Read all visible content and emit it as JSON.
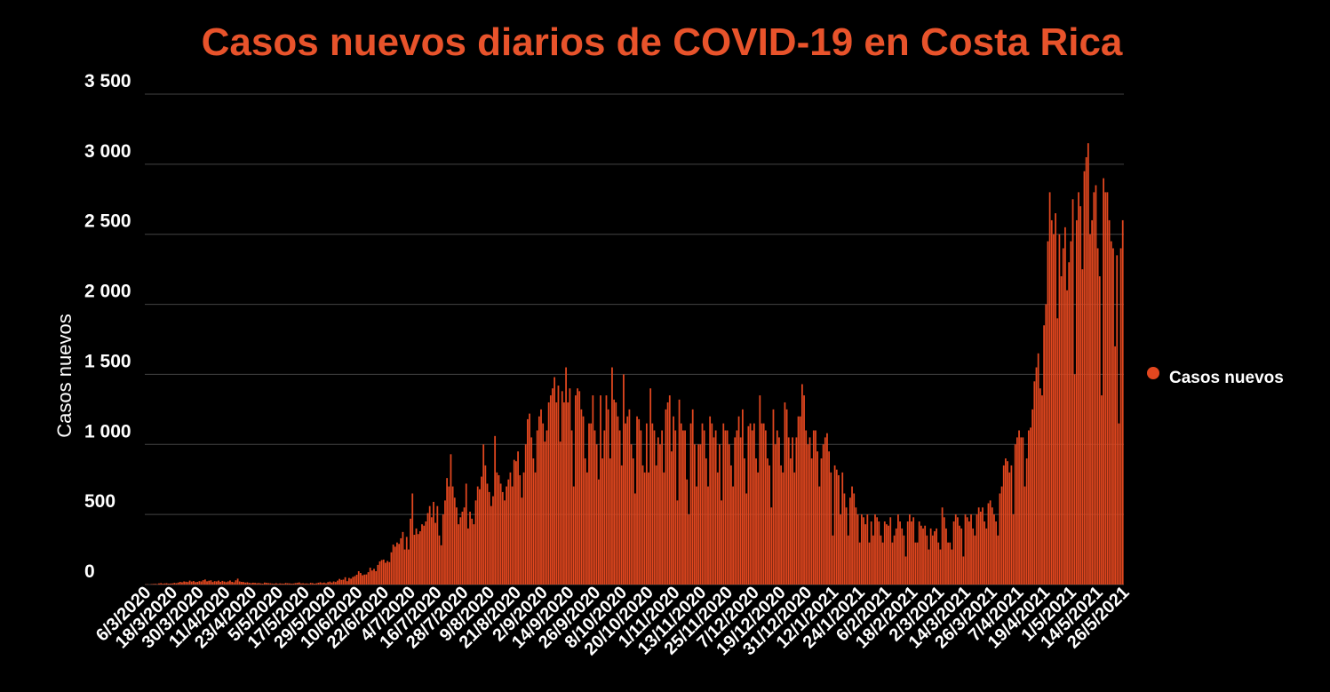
{
  "colors": {
    "background": "#000000",
    "bar": "#e2471f",
    "title": "#e8532b",
    "grid": "#444444",
    "text": "#ffffff"
  },
  "chart_data": {
    "type": "bar",
    "title": "Casos nuevos diarios de COVID-19 en Costa Rica",
    "ylabel": "Casos nuevos",
    "xlabel": "",
    "ylim": [
      0,
      3500
    ],
    "grid": true,
    "legend_position": "right",
    "y_ticks": [
      0,
      500,
      1000,
      1500,
      2000,
      2500,
      3000,
      3500
    ],
    "y_tick_labels": [
      "0",
      "500",
      "1 000",
      "1 500",
      "2 000",
      "2 500",
      "3 000",
      "3 500"
    ],
    "x_start": "6/3/2020",
    "x_tick_labels": [
      "6/3/2020",
      "18/3/2020",
      "30/3/2020",
      "11/4/2020",
      "23/4/2020",
      "5/5/2020",
      "17/5/2020",
      "29/5/2020",
      "10/6/2020",
      "22/6/2020",
      "4/7/2020",
      "16/7/2020",
      "28/7/2020",
      "9/8/2020",
      "21/8/2020",
      "2/9/2020",
      "14/9/2020",
      "26/9/2020",
      "8/10/2020",
      "20/10/2020",
      "1/11/2020",
      "13/11/2020",
      "25/11/2020",
      "7/12/2020",
      "19/12/2020",
      "31/12/2020",
      "12/1/2021",
      "24/1/2021",
      "6/2/2021",
      "18/2/2021",
      "2/3/2021",
      "14/3/2021",
      "26/3/2021",
      "7/4/2021",
      "19/4/2021",
      "1/5/2021",
      "14/5/2021",
      "26/5/2021"
    ],
    "series": [
      {
        "name": "Casos nuevos",
        "values": [
          1,
          2,
          0,
          3,
          4,
          5,
          3,
          8,
          10,
          6,
          8,
          9,
          6,
          7,
          8,
          12,
          9,
          14,
          19,
          16,
          22,
          20,
          18,
          28,
          21,
          25,
          17,
          19,
          24,
          22,
          31,
          36,
          23,
          27,
          30,
          18,
          24,
          22,
          28,
          19,
          26,
          21,
          17,
          22,
          29,
          19,
          16,
          30,
          42,
          22,
          19,
          18,
          14,
          16,
          12,
          10,
          13,
          12,
          9,
          11,
          8,
          6,
          14,
          12,
          10,
          9,
          7,
          6,
          9,
          5,
          8,
          7,
          6,
          11,
          9,
          8,
          6,
          7,
          10,
          12,
          15,
          8,
          9,
          7,
          8,
          5,
          12,
          10,
          6,
          9,
          13,
          16,
          11,
          14,
          9,
          17,
          21,
          14,
          22,
          18,
          28,
          40,
          33,
          35,
          52,
          24,
          47,
          42,
          54,
          60,
          70,
          95,
          82,
          66,
          71,
          72,
          88,
          120,
          100,
          112,
          95,
          140,
          165,
          175,
          178,
          155,
          168,
          160,
          230,
          285,
          270,
          300,
          290,
          330,
          375,
          250,
          340,
          250,
          470,
          650,
          355,
          400,
          360,
          380,
          430,
          420,
          450,
          510,
          560,
          480,
          590,
          440,
          560,
          350,
          280,
          500,
          600,
          760,
          700,
          930,
          700,
          620,
          550,
          430,
          480,
          520,
          550,
          720,
          400,
          520,
          470,
          430,
          600,
          700,
          680,
          770,
          1000,
          850,
          720,
          660,
          560,
          630,
          1060,
          800,
          780,
          720,
          660,
          600,
          700,
          750,
          800,
          700,
          890,
          880,
          950,
          780,
          620,
          800,
          1000,
          1180,
          1220,
          1050,
          900,
          800,
          1100,
          1200,
          1250,
          1150,
          1020,
          1100,
          1300,
          1350,
          1400,
          1480,
          1300,
          1420,
          1020,
          1380,
          1300,
          1550,
          1300,
          1400,
          1100,
          700,
          1350,
          1400,
          1380,
          1250,
          1200,
          900,
          800,
          1150,
          1150,
          1350,
          1100,
          1000,
          750,
          1350,
          900,
          1100,
          1350,
          1250,
          900,
          1550,
          1320,
          1300,
          1200,
          1100,
          850,
          1500,
          1150,
          1200,
          1250,
          1000,
          900,
          650,
          1200,
          1180,
          1100,
          850,
          800,
          1150,
          800,
          1400,
          1150,
          1100,
          850,
          1050,
          1000,
          1100,
          800,
          1250,
          1300,
          1350,
          950,
          1200,
          1100,
          600,
          1320,
          1150,
          1100,
          1100,
          750,
          500,
          1150,
          1250,
          1000,
          700,
          1000,
          1000,
          1150,
          1100,
          900,
          700,
          1200,
          1150,
          1050,
          1100,
          800,
          1000,
          600,
          1150,
          1100,
          1100,
          1000,
          850,
          700,
          1050,
          1100,
          1200,
          1050,
          1250,
          900,
          650,
          1130,
          1150,
          1100,
          1150,
          900,
          800,
          1350,
          1150,
          1150,
          1100,
          900,
          850,
          550,
          1250,
          1000,
          1100,
          1050,
          850,
          800,
          1300,
          1250,
          1050,
          900,
          1050,
          800,
          1050,
          1200,
          1200,
          1430,
          1350,
          1100,
          1000,
          1050,
          900,
          1100,
          1100,
          950,
          700,
          900,
          1000,
          1050,
          1080,
          950,
          800,
          350,
          850,
          820,
          780,
          500,
          800,
          650,
          550,
          350,
          620,
          700,
          650,
          550,
          500,
          300,
          500,
          480,
          430,
          500,
          300,
          450,
          350,
          500,
          480,
          450,
          350,
          300,
          450,
          430,
          420,
          480,
          300,
          350,
          400,
          500,
          450,
          400,
          350,
          200,
          450,
          500,
          450,
          480,
          300,
          300,
          450,
          420,
          400,
          420,
          350,
          250,
          400,
          350,
          380,
          400,
          300,
          250,
          550,
          480,
          400,
          300,
          300,
          250,
          450,
          500,
          480,
          420,
          400,
          200,
          500,
          480,
          450,
          500,
          400,
          350,
          500,
          550,
          520,
          550,
          450,
          400,
          580,
          600,
          550,
          500,
          450,
          350,
          650,
          700,
          850,
          900,
          880,
          800,
          850,
          500,
          1000,
          1050,
          1100,
          1050,
          1050,
          700,
          900,
          1100,
          1120,
          1250,
          1450,
          1550,
          1650,
          1400,
          1350,
          1850,
          2000,
          2450,
          2800,
          2600,
          2500,
          2650,
          1900,
          2500,
          2200,
          2400,
          2550,
          2100,
          2300,
          2450,
          2750,
          1500,
          2600,
          2800,
          2700,
          2250,
          2950,
          3050,
          3150,
          2500,
          2600,
          2800,
          2850,
          2400,
          2200,
          1350,
          2900,
          2800,
          2800,
          2600,
          2450,
          2400,
          1700,
          2350,
          1150,
          2400,
          2600
        ]
      }
    ]
  }
}
